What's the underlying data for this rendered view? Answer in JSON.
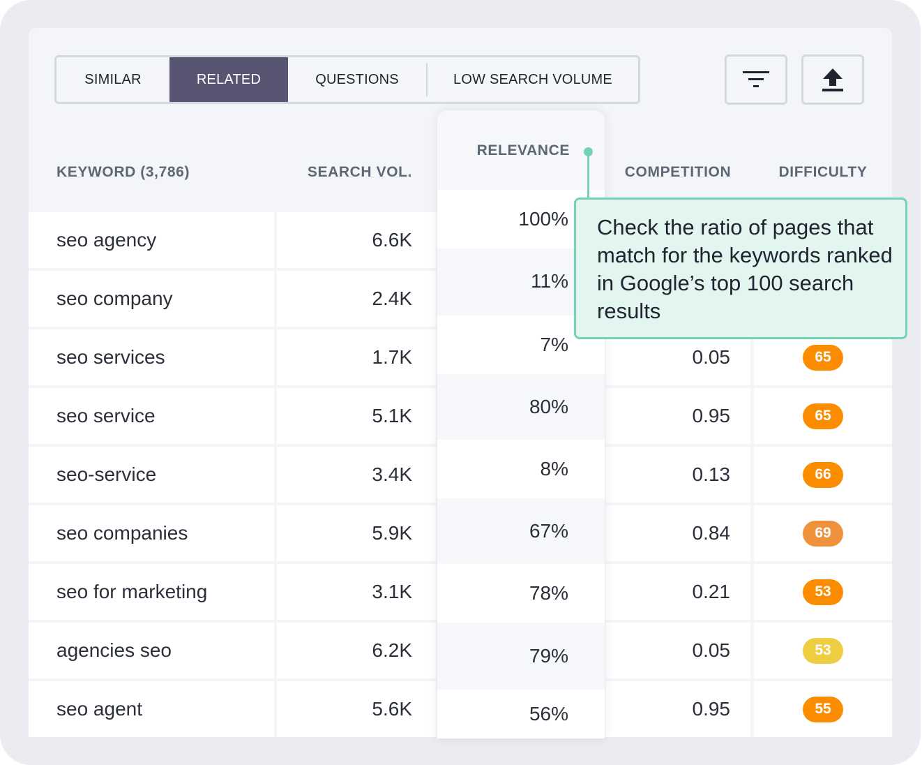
{
  "tabs": [
    {
      "label": "SIMILAR",
      "active": false
    },
    {
      "label": "RELATED",
      "active": true
    },
    {
      "label": "QUESTIONS",
      "active": false
    },
    {
      "label": "LOW SEARCH VOLUME",
      "active": false
    }
  ],
  "toolbar": {
    "filter_icon": "filter-icon",
    "export_icon": "export-icon"
  },
  "columns": {
    "keyword": "KEYWORD (3,786)",
    "search_vol": "SEARCH VOL.",
    "relevance": "RELEVANCE",
    "competition": "COMPETITION",
    "difficulty": "DIFFICULTY"
  },
  "rows": [
    {
      "keyword": "seo agency",
      "search_vol": "6.6K",
      "relevance": "100%",
      "competition": "",
      "difficulty": ""
    },
    {
      "keyword": "seo company",
      "search_vol": "2.4K",
      "relevance": "11%",
      "competition": "",
      "difficulty": ""
    },
    {
      "keyword": "seo services",
      "search_vol": "1.7K",
      "relevance": "7%",
      "competition": "0.05",
      "difficulty": "65"
    },
    {
      "keyword": "seo service",
      "search_vol": "5.1K",
      "relevance": "80%",
      "competition": "0.95",
      "difficulty": "65"
    },
    {
      "keyword": "seo-service",
      "search_vol": "3.4K",
      "relevance": "8%",
      "competition": "0.13",
      "difficulty": "66"
    },
    {
      "keyword": "seo companies",
      "search_vol": "5.9K",
      "relevance": "67%",
      "competition": "0.84",
      "difficulty": "69"
    },
    {
      "keyword": "seo for marketing",
      "search_vol": "3.1K",
      "relevance": "78%",
      "competition": "0.21",
      "difficulty": "53"
    },
    {
      "keyword": "agencies seo",
      "search_vol": "6.2K",
      "relevance": "79%",
      "competition": "0.05",
      "difficulty": "53"
    },
    {
      "keyword": "seo agent",
      "search_vol": "5.6K",
      "relevance": "56%",
      "competition": "0.95",
      "difficulty": "55"
    }
  ],
  "badge_colors": {
    "65": "#fb8c00",
    "66": "#fb8c00",
    "69": "#f0913c",
    "53": "#fb8c00",
    "55": "#fb8c00",
    "53_light": "#eecd41"
  },
  "tooltip": {
    "text": "Check the ratio of pages that match for the keywords ranked in Google’s top 100 search results"
  }
}
